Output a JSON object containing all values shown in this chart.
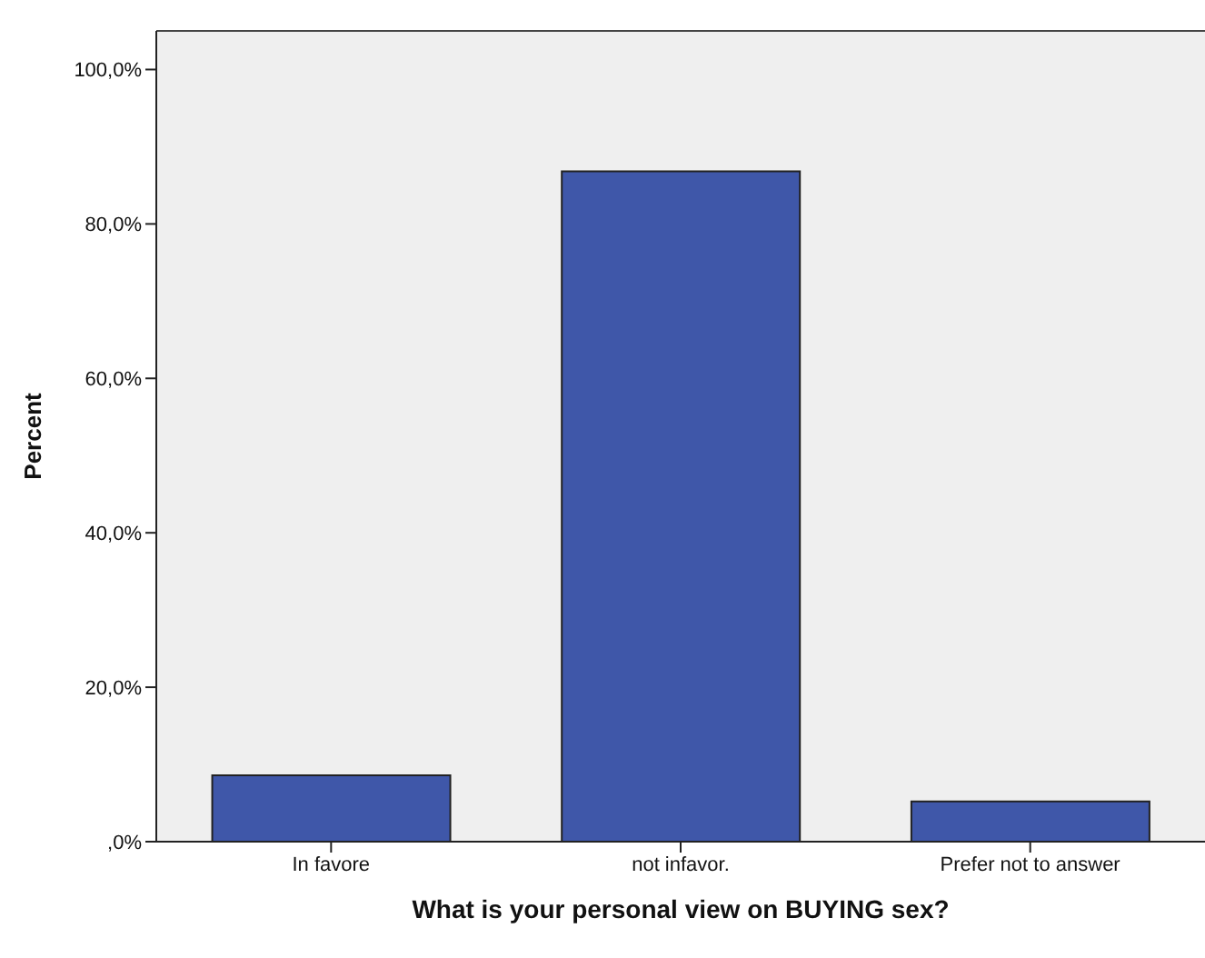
{
  "chart_data": {
    "type": "bar",
    "xlabel": "What is your personal view on BUYING sex?",
    "ylabel": "Percent",
    "categories": [
      "In favore",
      "not infavor.",
      "Prefer not to answer"
    ],
    "values": [
      8.6,
      86.8,
      5.2
    ],
    "color": "#3f57a9",
    "ylim": [
      0,
      105
    ],
    "yticks": [
      {
        "value": 0,
        "label": ",0%"
      },
      {
        "value": 20,
        "label": "20,0%"
      },
      {
        "value": 40,
        "label": "40,0%"
      },
      {
        "value": 60,
        "label": "60,0%"
      },
      {
        "value": 80,
        "label": "80,0%"
      },
      {
        "value": 100,
        "label": "100,0%"
      }
    ]
  }
}
